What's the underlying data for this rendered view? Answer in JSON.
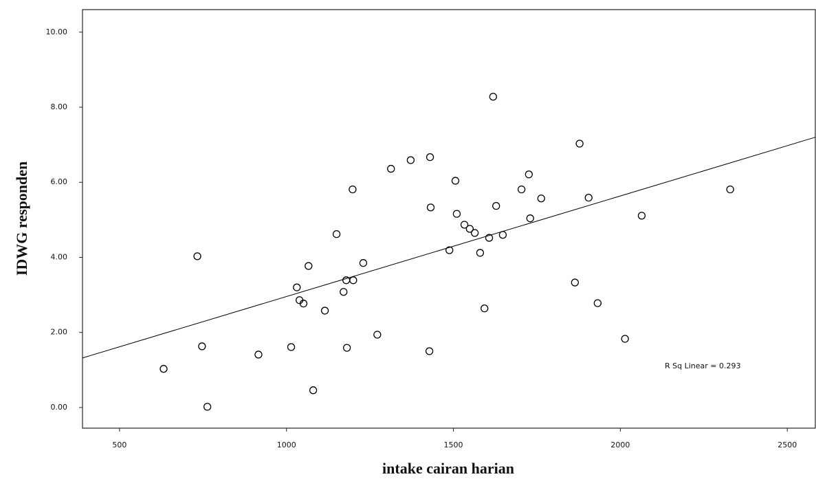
{
  "chart_data": {
    "type": "scatter",
    "x_label": "intake cairan harian",
    "y_label": "IDWG responden",
    "annotation": "R Sq Linear = 0.293",
    "marker_color": "#000000",
    "line_color": "#000000",
    "xlim": [
      389,
      2584
    ],
    "ylim": [
      -0.55,
      10.6
    ],
    "xticks": [
      500,
      1000,
      1500,
      2000,
      2500
    ],
    "yticks": [
      {
        "value": 0,
        "label": "0.00"
      },
      {
        "value": 2,
        "label": "2.00"
      },
      {
        "value": 4,
        "label": "4.00"
      },
      {
        "value": 6,
        "label": "6.00"
      },
      {
        "value": 8,
        "label": "8.00"
      },
      {
        "value": 10,
        "label": "10.00"
      }
    ],
    "x": [
      632,
      733,
      747,
      763,
      916,
      1014,
      1031,
      1039,
      1051,
      1066,
      1080,
      1115,
      1150,
      1171,
      1179,
      1181,
      1198,
      1200,
      1230,
      1272,
      1313,
      1372,
      1430,
      1428,
      1432,
      1488,
      1506,
      1510,
      1533,
      1549,
      1564,
      1580,
      1593,
      1607,
      1619,
      1628,
      1648,
      1704,
      1726,
      1730,
      1763,
      1864,
      1878,
      1905,
      1932,
      2014,
      2064,
      2329
    ],
    "y": [
      1.03,
      4.03,
      1.63,
      0.02,
      1.41,
      1.61,
      3.2,
      2.86,
      2.77,
      3.77,
      0.46,
      2.58,
      4.62,
      3.08,
      3.39,
      1.59,
      5.81,
      3.39,
      3.85,
      1.94,
      6.36,
      6.59,
      6.67,
      1.5,
      5.33,
      4.19,
      6.04,
      5.16,
      4.87,
      4.76,
      4.65,
      4.12,
      2.64,
      4.52,
      8.28,
      5.37,
      4.6,
      5.81,
      6.21,
      5.04,
      5.57,
      3.33,
      7.03,
      5.59,
      2.78,
      1.83,
      5.11,
      5.81
    ],
    "fit_line": {
      "x": [
        389,
        2584
      ],
      "y": [
        1.32,
        7.2
      ]
    }
  }
}
